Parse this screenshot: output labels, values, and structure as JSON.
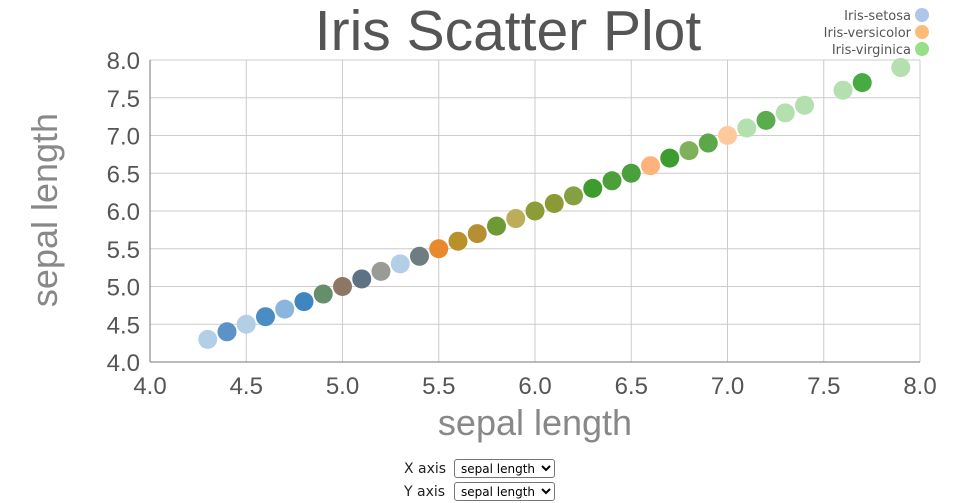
{
  "chart_data": {
    "type": "scatter",
    "title": "Iris Scatter Plot",
    "xlabel": "sepal length",
    "ylabel": "sepal length",
    "xlim": [
      4.0,
      8.0
    ],
    "ylim": [
      4.0,
      8.0
    ],
    "xticks": [
      "4.0",
      "4.5",
      "5.0",
      "5.5",
      "6.0",
      "6.5",
      "7.0",
      "7.5",
      "8.0"
    ],
    "yticks": [
      "4.0",
      "4.5",
      "5.0",
      "5.5",
      "6.0",
      "6.5",
      "7.0",
      "7.5",
      "8.0"
    ],
    "grid": true,
    "legend_position": "top-right",
    "series": [
      {
        "name": "Iris-setosa",
        "color": "#aec7e8"
      },
      {
        "name": "Iris-versicolor",
        "color": "#ffbb78"
      },
      {
        "name": "Iris-virginica",
        "color": "#98df8a"
      }
    ],
    "points": [
      {
        "x": 4.3,
        "y": 4.3,
        "color": "#b3cfe8"
      },
      {
        "x": 4.4,
        "y": 4.4,
        "color": "#5b93c6"
      },
      {
        "x": 4.5,
        "y": 4.5,
        "color": "#b3cfe8"
      },
      {
        "x": 4.6,
        "y": 4.6,
        "color": "#4a8dc4"
      },
      {
        "x": 4.7,
        "y": 4.7,
        "color": "#8ab6dd"
      },
      {
        "x": 4.8,
        "y": 4.8,
        "color": "#3f86c1"
      },
      {
        "x": 4.9,
        "y": 4.9,
        "color": "#668e6a"
      },
      {
        "x": 5.0,
        "y": 5.0,
        "color": "#8b7764"
      },
      {
        "x": 5.1,
        "y": 5.1,
        "color": "#5e7286"
      },
      {
        "x": 5.2,
        "y": 5.2,
        "color": "#989b96"
      },
      {
        "x": 5.3,
        "y": 5.3,
        "color": "#b3cfe8"
      },
      {
        "x": 5.4,
        "y": 5.4,
        "color": "#6e7d82"
      },
      {
        "x": 5.5,
        "y": 5.5,
        "color": "#e8892e"
      },
      {
        "x": 5.6,
        "y": 5.6,
        "color": "#b8912c"
      },
      {
        "x": 5.7,
        "y": 5.7,
        "color": "#b68f34"
      },
      {
        "x": 5.8,
        "y": 5.8,
        "color": "#6e9a36"
      },
      {
        "x": 5.9,
        "y": 5.9,
        "color": "#bcae58"
      },
      {
        "x": 6.0,
        "y": 6.0,
        "color": "#8c9c36"
      },
      {
        "x": 6.1,
        "y": 6.1,
        "color": "#8b9a34"
      },
      {
        "x": 6.2,
        "y": 6.2,
        "color": "#84a040"
      },
      {
        "x": 6.3,
        "y": 6.3,
        "color": "#3c9c2e"
      },
      {
        "x": 6.4,
        "y": 6.4,
        "color": "#4ba03a"
      },
      {
        "x": 6.5,
        "y": 6.5,
        "color": "#4ba03e"
      },
      {
        "x": 6.6,
        "y": 6.6,
        "color": "#ffb27a"
      },
      {
        "x": 6.7,
        "y": 6.7,
        "color": "#3c9c2e"
      },
      {
        "x": 6.8,
        "y": 6.8,
        "color": "#7fb05a"
      },
      {
        "x": 6.9,
        "y": 6.9,
        "color": "#5ca748"
      },
      {
        "x": 7.0,
        "y": 7.0,
        "color": "#ffc99e"
      },
      {
        "x": 7.1,
        "y": 7.1,
        "color": "#b4dfae"
      },
      {
        "x": 7.2,
        "y": 7.2,
        "color": "#5aac4e"
      },
      {
        "x": 7.3,
        "y": 7.3,
        "color": "#b4dfae"
      },
      {
        "x": 7.4,
        "y": 7.4,
        "color": "#b4dfae"
      },
      {
        "x": 7.6,
        "y": 7.6,
        "color": "#b4dfae"
      },
      {
        "x": 7.7,
        "y": 7.7,
        "color": "#48aa42"
      },
      {
        "x": 7.9,
        "y": 7.9,
        "color": "#b4dfae"
      }
    ]
  },
  "controls": {
    "x_axis_label": "X axis",
    "y_axis_label": "Y axis",
    "x_axis_value": "sepal length",
    "y_axis_value": "sepal length"
  }
}
